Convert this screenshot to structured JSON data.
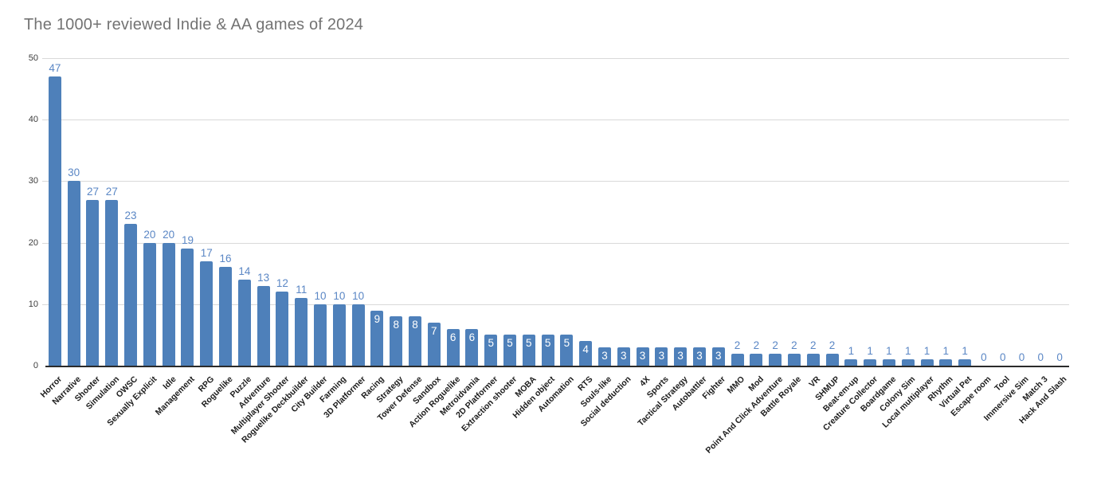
{
  "chart_data": {
    "type": "bar",
    "title": "The 1000+ reviewed Indie & AA games of 2024",
    "xlabel": "",
    "ylabel": "",
    "ylim": [
      0,
      50
    ],
    "yticks": [
      0,
      10,
      20,
      30,
      40,
      50
    ],
    "grid": "horizontal",
    "legend_position": "none",
    "categories": [
      "Horror",
      "Narrative",
      "Shooter",
      "Simulation",
      "OWSC",
      "Sexually Explicit",
      "Idle",
      "Management",
      "RPG",
      "Roguelike",
      "Puzzle",
      "Adventure",
      "Multiplayer Shooter",
      "Roguelike Deckbuilder",
      "City Builder",
      "Farming",
      "3D Platformer",
      "Racing",
      "Strategy",
      "Tower Defense",
      "Sandbox",
      "Action Roguelike",
      "Metroidvania",
      "2D Platformer",
      "Extraction shooter",
      "MOBA",
      "Hidden object",
      "Automation",
      "RTS",
      "Souls-like",
      "Social deduction",
      "4X",
      "Sports",
      "Tactical Strategy",
      "Autobattler",
      "Fighter",
      "MMO",
      "Mod",
      "Point And Click Adventure",
      "Battle Royale",
      "VR",
      "SHMUP",
      "Beat-em-up",
      "Creature Collector",
      "Boardgame",
      "Colony Sim",
      "Local multiplayer",
      "Rhythm",
      "Virtual Pet",
      "Escape room",
      "Tool",
      "Immersive Sim",
      "Match 3",
      "Hack And Slash"
    ],
    "values": [
      47,
      30,
      27,
      27,
      23,
      20,
      20,
      19,
      17,
      16,
      14,
      13,
      12,
      11,
      10,
      10,
      10,
      9,
      8,
      8,
      7,
      6,
      6,
      5,
      5,
      5,
      5,
      5,
      4,
      3,
      3,
      3,
      3,
      3,
      3,
      3,
      2,
      2,
      2,
      2,
      2,
      2,
      1,
      1,
      1,
      1,
      1,
      1,
      1,
      0,
      0,
      0,
      0,
      0
    ],
    "data_label_placement": "values 3-9 inside bar top in white; all other values above bar in blue",
    "colors": {
      "bar": "#4e80ba",
      "value_label_outside": "#5b87c5",
      "value_label_inside": "#ffffff",
      "gridline": "#d9d9d9",
      "axis_line": "#2b2b2b",
      "title_text": "#737373",
      "axis_tick_text": "#3d3d3d",
      "category_text": "#1c1c1c",
      "background": "#ffffff"
    }
  }
}
